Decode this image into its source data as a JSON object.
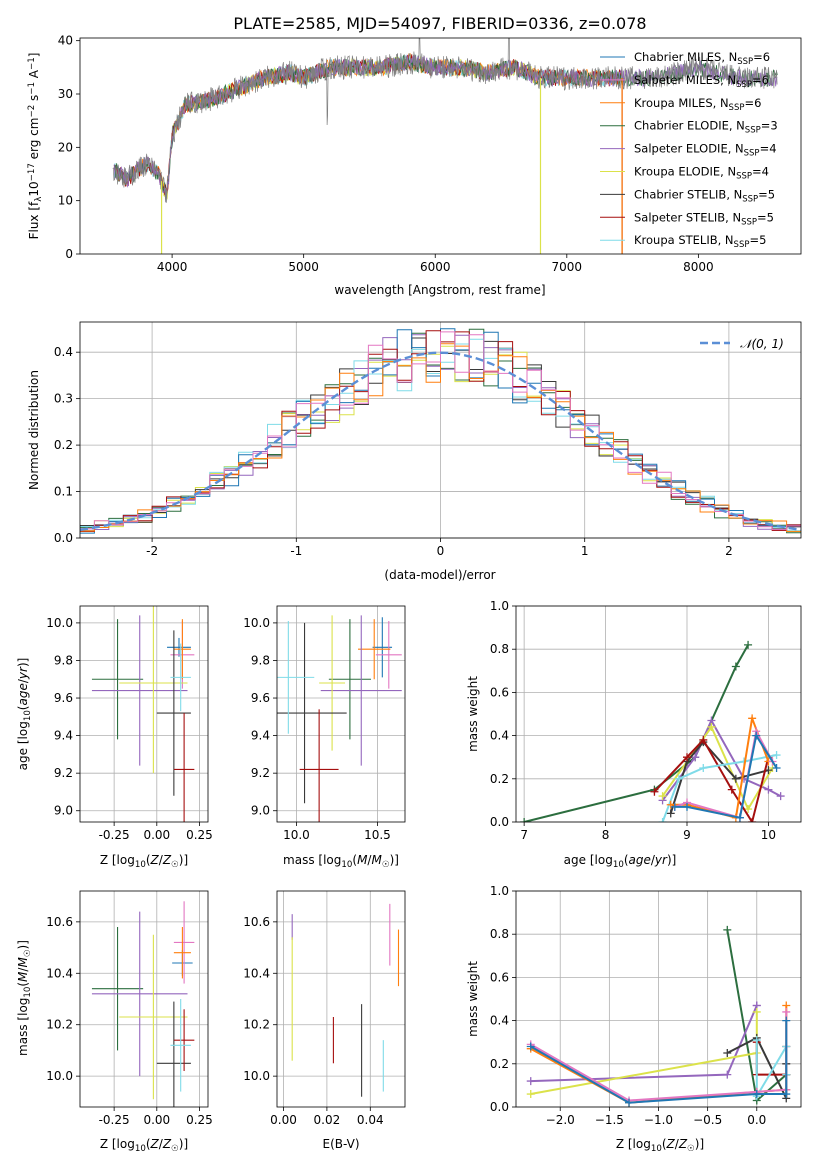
{
  "title": "PLATE=2585, MJD=54097, FIBERID=0336, z=0.078",
  "colors": {
    "chabrier_miles": "#1f77b4",
    "salpeter_miles": "#e377c2",
    "kroupa_miles": "#ff7f0e",
    "chabrier_elodie": "#2c6e3f",
    "salpeter_elodie": "#9467bd",
    "kroupa_elodie": "#dbe24a",
    "chabrier_stelib": "#3a3a3a",
    "salpeter_stelib": "#a50f0f",
    "kroupa_stelib": "#7fdbe8",
    "gaussian": "#5b8fd6",
    "data": "#808080"
  },
  "chart_data": [
    {
      "id": "spectrum",
      "type": "line",
      "xlabel": "wavelength [Angstrom, rest frame]",
      "ylabel": "Flux [f_λ10^-17 erg cm^-2 s^-1 A^-1]",
      "xticks": [
        4000,
        5000,
        6000,
        7000,
        8000
      ],
      "yticks": [
        0,
        10,
        20,
        30,
        40
      ],
      "xlim": [
        3300,
        8780
      ],
      "ylim": [
        0,
        40.5
      ],
      "legend_placement": "right",
      "legend": [
        {
          "label": "Chabrier MILES, N",
          "sub": "SSP",
          "suffix": "=6",
          "color": "chabrier_miles"
        },
        {
          "label": "Salpeter MILES, N",
          "sub": "SSP",
          "suffix": "=6",
          "color": "salpeter_miles"
        },
        {
          "label": "Kroupa MILES, N",
          "sub": "SSP",
          "suffix": "=6",
          "color": "kroupa_miles"
        },
        {
          "label": "Chabrier ELODIE, N",
          "sub": "SSP",
          "suffix": "=3",
          "color": "chabrier_elodie"
        },
        {
          "label": "Salpeter ELODIE, N",
          "sub": "SSP",
          "suffix": "=4",
          "color": "salpeter_elodie"
        },
        {
          "label": "Kroupa ELODIE, N",
          "sub": "SSP",
          "suffix": "=4",
          "color": "kroupa_elodie"
        },
        {
          "label": "Chabrier STELIB, N",
          "sub": "SSP",
          "suffix": "=5",
          "color": "chabrier_stelib"
        },
        {
          "label": "Salpeter STELIB, N",
          "sub": "SSP",
          "suffix": "=5",
          "color": "salpeter_stelib"
        },
        {
          "label": "Kroupa STELIB, N",
          "sub": "SSP",
          "suffix": "=5",
          "color": "kroupa_stelib"
        }
      ],
      "continuum": [
        [
          3550,
          16
        ],
        [
          3650,
          14
        ],
        [
          3800,
          17
        ],
        [
          3900,
          15
        ],
        [
          3960,
          11
        ],
        [
          4000,
          22
        ],
        [
          4100,
          28
        ],
        [
          4300,
          29
        ],
        [
          4500,
          31
        ],
        [
          4700,
          33
        ],
        [
          4900,
          34
        ],
        [
          5000,
          33
        ],
        [
          5200,
          35
        ],
        [
          5400,
          35
        ],
        [
          5600,
          35
        ],
        [
          5800,
          36
        ],
        [
          6000,
          35
        ],
        [
          6200,
          35
        ],
        [
          6400,
          34
        ],
        [
          6600,
          35
        ],
        [
          6800,
          33
        ],
        [
          7000,
          33
        ],
        [
          7200,
          33
        ],
        [
          7400,
          33
        ],
        [
          7700,
          33
        ],
        [
          8000,
          35
        ],
        [
          8300,
          33
        ],
        [
          8600,
          33
        ]
      ],
      "series_extent": [
        {
          "color": "kroupa_elodie",
          "x": [
            3920,
            6800
          ]
        },
        {
          "color": "salpeter_stelib",
          "x": [
            3560,
            7420
          ]
        },
        {
          "color": "kroupa_miles",
          "x": [
            3560,
            7420
          ]
        }
      ]
    },
    {
      "id": "residuals",
      "type": "histogram",
      "xlabel": "(data-model)/error",
      "ylabel": "Normed distribution",
      "xticks": [
        -2,
        -1,
        0,
        1,
        2
      ],
      "yticks": [
        0.0,
        0.1,
        0.2,
        0.3,
        0.4
      ],
      "xlim": [
        -2.5,
        2.5
      ],
      "ylim": [
        0,
        0.465
      ],
      "legend_label": "𝒩(0, 1)",
      "legend_placement": "top-right",
      "bin_width": 0.1
    },
    {
      "id": "age_vs_Z",
      "type": "scatter",
      "xlabel": "Z [log10(Z/Z☉)]",
      "ylabel": "age [log10(age/yr)]",
      "xticks": [
        -0.25,
        0.0,
        0.25
      ],
      "yticks": [
        9.0,
        9.2,
        9.4,
        9.6,
        9.8,
        10.0
      ],
      "xlim": [
        -0.45,
        0.3
      ],
      "ylim": [
        8.94,
        10.09
      ],
      "points": [
        {
          "c": "chabrier_miles",
          "x": 0.13,
          "y": 9.87,
          "xe": 0.07,
          "ye": 0.05
        },
        {
          "c": "salpeter_miles",
          "x": 0.15,
          "y": 9.83,
          "xe": 0.07,
          "ye": 0.18
        },
        {
          "c": "kroupa_miles",
          "x": 0.15,
          "y": 9.86,
          "xe": 0.05,
          "ye": 0.16
        },
        {
          "c": "chabrier_elodie",
          "x": -0.23,
          "y": 9.7,
          "xe": 0.15,
          "ye": 0.32
        },
        {
          "c": "salpeter_elodie",
          "x": -0.1,
          "y": 9.64,
          "xe": 0.28,
          "ye": 0.4
        },
        {
          "c": "kroupa_elodie",
          "x": -0.02,
          "y": 9.68,
          "xe": 0.2,
          "ye": 0.48
        },
        {
          "c": "chabrier_stelib",
          "x": 0.1,
          "y": 9.52,
          "xe": 0.1,
          "ye": 0.44
        },
        {
          "c": "salpeter_stelib",
          "x": 0.16,
          "y": 9.22,
          "xe": 0.06,
          "ye": 0.3
        },
        {
          "c": "kroupa_stelib",
          "x": 0.14,
          "y": 9.71,
          "xe": 0.06,
          "ye": 0.18
        }
      ]
    },
    {
      "id": "age_vs_mass",
      "type": "scatter",
      "xlabel": "mass [log10(M/M☉)]",
      "ylabel": "",
      "xticks": [
        10.0,
        10.5
      ],
      "yticks": [
        9.0,
        9.2,
        9.4,
        9.6,
        9.8,
        10.0
      ],
      "xlim": [
        9.88,
        10.67
      ],
      "ylim": [
        8.94,
        10.09
      ],
      "points": [
        {
          "c": "chabrier_miles",
          "x": 10.53,
          "y": 9.87,
          "xe": 0.06,
          "ye": 0.16
        },
        {
          "c": "salpeter_miles",
          "x": 10.57,
          "y": 9.83,
          "xe": 0.08,
          "ye": 0.18
        },
        {
          "c": "kroupa_miles",
          "x": 10.48,
          "y": 9.86,
          "xe": 0.1,
          "ye": 0.16
        },
        {
          "c": "chabrier_elodie",
          "x": 10.33,
          "y": 9.7,
          "xe": 0.13,
          "ye": 0.32
        },
        {
          "c": "salpeter_elodie",
          "x": 10.4,
          "y": 9.64,
          "xe": 0.25,
          "ye": 0.4
        },
        {
          "c": "kroupa_elodie",
          "x": 10.22,
          "y": 9.68,
          "xe": 0.08,
          "ye": 0.36
        },
        {
          "c": "chabrier_stelib",
          "x": 10.05,
          "y": 9.52,
          "xe": 0.26,
          "ye": 0.48
        },
        {
          "c": "salpeter_stelib",
          "x": 10.14,
          "y": 9.22,
          "xe": 0.12,
          "ye": 0.32
        },
        {
          "c": "kroupa_stelib",
          "x": 9.95,
          "y": 9.71,
          "xe": 0.16,
          "ye": 0.3
        }
      ]
    },
    {
      "id": "weight_vs_age",
      "type": "line",
      "xlabel": "age [log10(age/yr)]",
      "ylabel": "mass weight",
      "xticks": [
        7,
        8,
        9,
        10
      ],
      "yticks": [
        0.0,
        0.2,
        0.4,
        0.6,
        0.8,
        1.0
      ],
      "xlim": [
        6.9,
        10.4
      ],
      "ylim": [
        0,
        1.0
      ],
      "series": [
        {
          "c": "chabrier_elodie",
          "x": [
            7.0,
            8.6,
            9.1,
            9.6,
            9.75
          ],
          "y": [
            0.0,
            0.15,
            0.3,
            0.72,
            0.82
          ]
        },
        {
          "c": "salpeter_elodie",
          "x": [
            8.7,
            9.1,
            9.3,
            9.7,
            10.0,
            10.15
          ],
          "y": [
            0.1,
            0.3,
            0.47,
            0.2,
            0.15,
            0.12
          ]
        },
        {
          "c": "kroupa_elodie",
          "x": [
            8.7,
            9.3,
            9.75,
            10.05
          ],
          "y": [
            0.12,
            0.44,
            0.06,
            0.25
          ]
        },
        {
          "c": "chabrier_stelib",
          "x": [
            8.8,
            9.0,
            9.2,
            9.6,
            10.0
          ],
          "y": [
            0.04,
            0.28,
            0.37,
            0.2,
            0.24
          ]
        },
        {
          "c": "salpeter_stelib",
          "x": [
            8.6,
            9.0,
            9.2,
            9.55,
            9.8,
            10.0
          ],
          "y": [
            0.14,
            0.3,
            0.38,
            0.15,
            0.0,
            0.3
          ]
        },
        {
          "c": "kroupa_stelib",
          "x": [
            8.7,
            8.9,
            9.2,
            9.7,
            10.1
          ],
          "y": [
            0.0,
            0.2,
            0.25,
            0.28,
            0.31
          ]
        },
        {
          "c": "kroupa_miles",
          "x": [
            8.8,
            9.0,
            9.6,
            9.8,
            10.0
          ],
          "y": [
            0.08,
            0.08,
            0.02,
            0.48,
            0.28
          ]
        },
        {
          "c": "salpeter_miles",
          "x": [
            8.85,
            9.0,
            9.65,
            9.85,
            10.05
          ],
          "y": [
            0.07,
            0.09,
            0.02,
            0.42,
            0.28
          ]
        },
        {
          "c": "chabrier_miles",
          "x": [
            8.85,
            9.0,
            9.65,
            9.85,
            10.1
          ],
          "y": [
            0.07,
            0.07,
            0.02,
            0.4,
            0.25
          ]
        }
      ]
    },
    {
      "id": "mass_vs_Z",
      "type": "scatter",
      "xlabel": "Z [log10(Z/Z☉)]",
      "ylabel": "mass [log10(M/M☉)]",
      "xticks": [
        -0.25,
        0.0,
        0.25
      ],
      "yticks": [
        10.0,
        10.2,
        10.4,
        10.6
      ],
      "xlim": [
        -0.45,
        0.3
      ],
      "ylim": [
        9.88,
        10.72
      ],
      "points": [
        {
          "c": "chabrier_miles",
          "x": 0.15,
          "y": 10.44,
          "xe": 0.06,
          "ye": 0.05
        },
        {
          "c": "salpeter_miles",
          "x": 0.16,
          "y": 10.52,
          "xe": 0.06,
          "ye": 0.16
        },
        {
          "c": "kroupa_miles",
          "x": 0.15,
          "y": 10.48,
          "xe": 0.05,
          "ye": 0.1
        },
        {
          "c": "chabrier_elodie",
          "x": -0.23,
          "y": 10.34,
          "xe": 0.15,
          "ye": 0.24
        },
        {
          "c": "salpeter_elodie",
          "x": -0.1,
          "y": 10.32,
          "xe": 0.28,
          "ye": 0.32
        },
        {
          "c": "kroupa_elodie",
          "x": -0.02,
          "y": 10.23,
          "xe": 0.2,
          "ye": 0.32
        },
        {
          "c": "chabrier_stelib",
          "x": 0.1,
          "y": 10.05,
          "xe": 0.1,
          "ye": 0.24
        },
        {
          "c": "salpeter_stelib",
          "x": 0.16,
          "y": 10.14,
          "xe": 0.06,
          "ye": 0.12
        },
        {
          "c": "kroupa_stelib",
          "x": 0.14,
          "y": 10.12,
          "xe": 0.06,
          "ye": 0.18
        }
      ]
    },
    {
      "id": "mass_vs_ebv",
      "type": "scatter",
      "xlabel": "E(B-V)",
      "ylabel": "",
      "xticks": [
        0.0,
        0.02,
        0.04
      ],
      "yticks": [
        10.0,
        10.2,
        10.4,
        10.6
      ],
      "xlim": [
        -0.003,
        0.056
      ],
      "ylim": [
        9.88,
        10.72
      ],
      "points": [
        {
          "c": "salpeter_elodie",
          "x": 0.004,
          "y": 10.58,
          "ye": 0.05
        },
        {
          "c": "kroupa_elodie",
          "x": 0.004,
          "y": 10.3,
          "ye": 0.24
        },
        {
          "c": "salpeter_miles",
          "x": 0.049,
          "y": 10.55,
          "ye": 0.12
        },
        {
          "c": "kroupa_miles",
          "x": 0.053,
          "y": 10.46,
          "ye": 0.11
        },
        {
          "c": "chabrier_stelib",
          "x": 0.036,
          "y": 10.1,
          "ye": 0.18
        },
        {
          "c": "salpeter_stelib",
          "x": 0.023,
          "y": 10.14,
          "ye": 0.09
        },
        {
          "c": "kroupa_stelib",
          "x": 0.046,
          "y": 10.04,
          "ye": 0.1
        }
      ]
    },
    {
      "id": "weight_vs_Z",
      "type": "line",
      "xlabel": "Z [log10(Z/Z☉)]",
      "ylabel": "mass weight",
      "xticks": [
        -2.0,
        -1.5,
        -1.0,
        -0.5,
        0.0
      ],
      "yticks": [
        0.0,
        0.2,
        0.4,
        0.6,
        0.8,
        1.0
      ],
      "xlim": [
        -2.45,
        0.45
      ],
      "ylim": [
        0,
        1.0
      ],
      "series": [
        {
          "c": "chabrier_elodie",
          "x": [
            -0.3,
            0.0,
            0.3
          ],
          "y": [
            0.82,
            0.03,
            0.15
          ]
        },
        {
          "c": "salpeter_elodie",
          "x": [
            -2.3,
            -0.3,
            0.0,
            0.0
          ],
          "y": [
            0.12,
            0.15,
            0.47,
            0.47
          ]
        },
        {
          "c": "kroupa_elodie",
          "x": [
            -2.3,
            0.0,
            0.0
          ],
          "y": [
            0.06,
            0.25,
            0.44
          ]
        },
        {
          "c": "chabrier_stelib",
          "x": [
            -0.3,
            0.0,
            0.3,
            0.3
          ],
          "y": [
            0.25,
            0.32,
            0.04,
            0.2
          ]
        },
        {
          "c": "salpeter_stelib",
          "x": [
            0.0,
            0.0,
            0.3,
            0.3
          ],
          "y": [
            0.3,
            0.15,
            0.15,
            0.28
          ]
        },
        {
          "c": "kroupa_stelib",
          "x": [
            0.0,
            0.0,
            0.3,
            0.3
          ],
          "y": [
            0.31,
            0.05,
            0.28,
            0.15
          ]
        },
        {
          "c": "kroupa_miles",
          "x": [
            -2.3,
            -1.3,
            0.0,
            0.3,
            0.3
          ],
          "y": [
            0.27,
            0.02,
            0.07,
            0.08,
            0.47
          ]
        },
        {
          "c": "salpeter_miles",
          "x": [
            -2.3,
            -1.3,
            0.0,
            0.3,
            0.3
          ],
          "y": [
            0.29,
            0.03,
            0.07,
            0.08,
            0.44
          ]
        },
        {
          "c": "chabrier_miles",
          "x": [
            -2.3,
            -1.3,
            0.0,
            0.3,
            0.3
          ],
          "y": [
            0.28,
            0.02,
            0.06,
            0.06,
            0.4
          ]
        }
      ]
    }
  ]
}
